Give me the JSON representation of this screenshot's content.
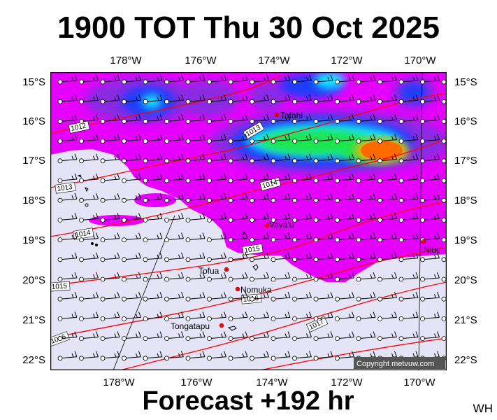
{
  "title": "1900 TOT Thu 30 Oct 2025",
  "footer": "Forecast +192 hr",
  "corner_label": "WH",
  "copyright": "Copyright metvuw.com",
  "lon_labels": [
    "178°W",
    "176°W",
    "174°W",
    "172°W",
    "170°W"
  ],
  "lat_labels": [
    "15°S",
    "16°S",
    "17°S",
    "18°S",
    "19°S",
    "20°S",
    "21°S",
    "22°S"
  ],
  "places": [
    {
      "name": "Tafahi"
    },
    {
      "name": "Vava'u"
    },
    {
      "name": "Niue"
    },
    {
      "name": "Tofua"
    },
    {
      "name": "Nomuka"
    },
    {
      "name": "Tongatapu"
    }
  ],
  "isobars": [
    "1012",
    "1013",
    "1013",
    "1014",
    "1014",
    "1015",
    "1015",
    "1016",
    "1016",
    "1017"
  ],
  "colors": {
    "ocean_low": "#e4e4f6",
    "magenta": "#e600ff",
    "purple": "#8a2be2",
    "blue": "#1e3cff",
    "cyan": "#12e6ff",
    "green": "#1ee650",
    "orange": "#ff6a00",
    "isobar": "#ff0000"
  },
  "icons": [
    "wind-barb-icon",
    "town-marker-icon"
  ]
}
